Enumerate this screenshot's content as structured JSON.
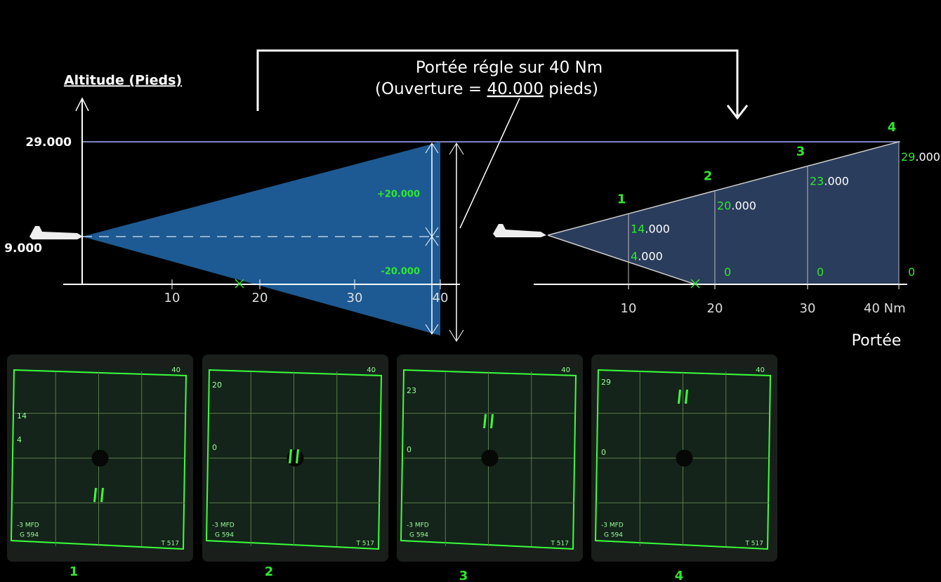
{
  "header": {
    "axis_title": "Altitude (Pieds)",
    "range_setting": "Portée régle sur 40 Nm",
    "aperture_open": "(Ouverture = ",
    "aperture_value": "40.000",
    "aperture_close": " pieds)"
  },
  "left_diagram": {
    "altitude_top": "29.000",
    "altitude_aircraft": "9.000",
    "above": "+20.000",
    "below": "-20.000",
    "ticks": [
      "10",
      "20",
      "30",
      "40"
    ]
  },
  "right_diagram": {
    "ticks": [
      "10",
      "20",
      "30",
      "40 Nm"
    ],
    "axis_title": "Portée",
    "points": [
      {
        "label": "1",
        "upper_high": "14",
        "upper_rest": ".000",
        "lower_high": "4",
        "lower_rest": ".000"
      },
      {
        "label": "2",
        "upper_high": "20",
        "upper_rest": ".000",
        "lower_high": "0",
        "lower_rest": ""
      },
      {
        "label": "3",
        "upper_high": "23",
        "upper_rest": ".000",
        "lower_high": "0",
        "lower_rest": ""
      },
      {
        "label": "4",
        "upper_high": "29",
        "upper_rest": ".000",
        "lower_high": "0",
        "lower_rest": ""
      }
    ]
  },
  "panels": [
    {
      "caption": "1",
      "range": "40",
      "upper": "14",
      "lower": "4",
      "mode": "-3 MFD",
      "footer_left": "G 594",
      "footer_right": "T 517"
    },
    {
      "caption": "2",
      "range": "40",
      "upper": "20",
      "lower": "0",
      "mode": "-3 MFD",
      "footer_left": "G 594",
      "footer_right": "T 517"
    },
    {
      "caption": "3",
      "range": "40",
      "upper": "23",
      "lower": "0",
      "mode": "-3 MFD",
      "footer_left": "G 594",
      "footer_right": "T 517"
    },
    {
      "caption": "4",
      "range": "40",
      "upper": "29",
      "lower": "0",
      "mode": "-3 MFD",
      "footer_left": "G 594",
      "footer_right": "T 517"
    }
  ]
}
